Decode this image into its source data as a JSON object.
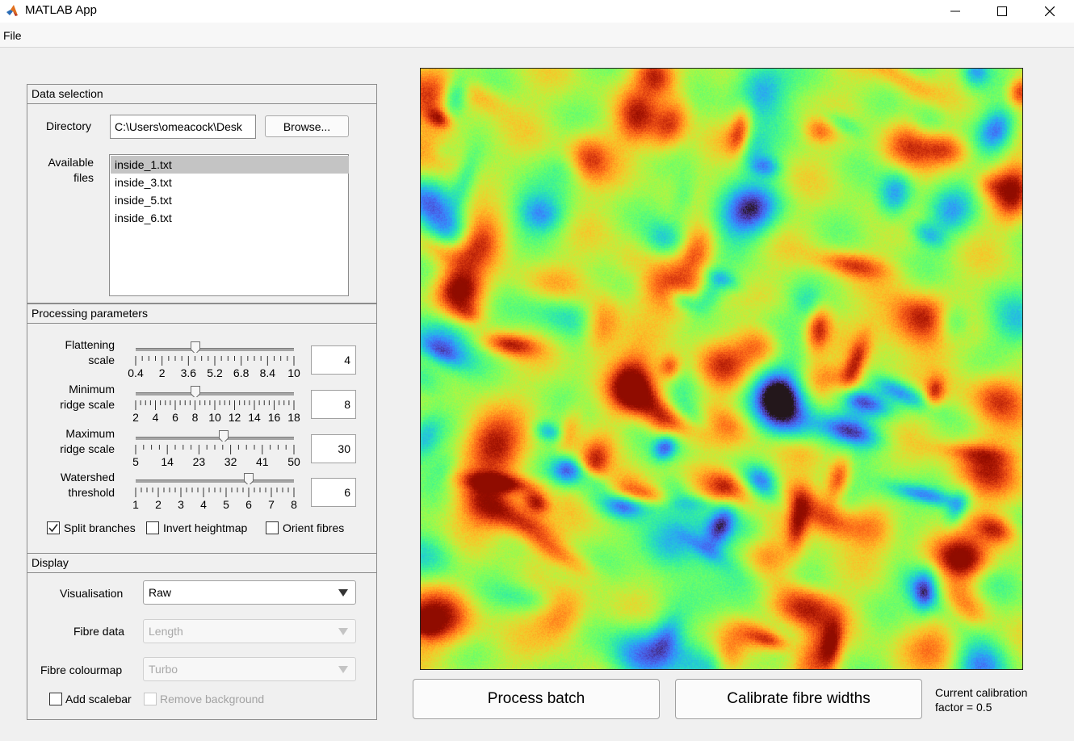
{
  "window": {
    "title": "MATLAB App",
    "minimize_glyph": "—",
    "maximize_glyph": "☐",
    "close_glyph": "✕"
  },
  "menu": {
    "file": "File"
  },
  "data_selection": {
    "title": "Data selection",
    "directory_label": "Directory",
    "directory_value": "C:\\Users\\omeacock\\Desk",
    "browse_label": "Browse...",
    "available_files_label_1": "Available",
    "available_files_label_2": "files",
    "files": [
      "inside_1.txt",
      "inside_3.txt",
      "inside_5.txt",
      "inside_6.txt"
    ],
    "selected_file": "inside_1.txt"
  },
  "processing": {
    "title": "Processing parameters",
    "sliders": [
      {
        "label_1": "Flattening",
        "label_2": "scale",
        "value": "4",
        "min": 0.4,
        "max": 10,
        "tick_labels": [
          "0.4",
          "2",
          "3.6",
          "5.2",
          "6.8",
          "8.4",
          "10"
        ]
      },
      {
        "label_1": "Minimum",
        "label_2": "ridge scale",
        "value": "8",
        "min": 2,
        "max": 18,
        "tick_labels": [
          "2",
          "4",
          "6",
          "8",
          "10",
          "12",
          "14",
          "16",
          "18"
        ]
      },
      {
        "label_1": "Maximum",
        "label_2": "ridge scale",
        "value": "30",
        "min": 5,
        "max": 50,
        "tick_labels": [
          "5",
          "14",
          "23",
          "32",
          "41",
          "50"
        ]
      },
      {
        "label_1": "Watershed",
        "label_2": "threshold",
        "value": "6",
        "min": 1,
        "max": 8,
        "tick_labels": [
          "1",
          "2",
          "3",
          "4",
          "5",
          "6",
          "7",
          "8"
        ]
      }
    ],
    "split_branches": {
      "label": "Split branches",
      "checked": true
    },
    "invert_heightmap": {
      "label": "Invert heightmap",
      "checked": false
    },
    "orient_fibres": {
      "label": "Orient fibres",
      "checked": false
    }
  },
  "display": {
    "title": "Display",
    "visualisation_label": "Visualisation",
    "visualisation_value": "Raw",
    "fibre_data_label": "Fibre data",
    "fibre_data_value": "Length",
    "fibre_colourmap_label": "Fibre colourmap",
    "fibre_colourmap_value": "Turbo",
    "add_scalebar": {
      "label": "Add scalebar",
      "checked": false
    },
    "remove_background": {
      "label": "Remove background",
      "checked": false
    }
  },
  "actions": {
    "process_batch": "Process batch",
    "calibrate_fibre_widths": "Calibrate fibre widths",
    "calibration_line_1": "Current calibration",
    "calibration_line_2": "factor = 0.5"
  },
  "image": {
    "colormap": "turbo"
  }
}
